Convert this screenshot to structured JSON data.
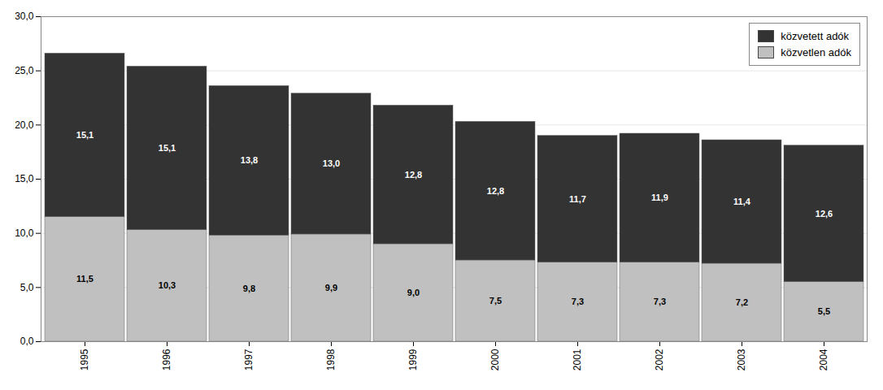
{
  "chart_data": {
    "type": "bar",
    "stacked": true,
    "categories": [
      "1995",
      "1996",
      "1997",
      "1998",
      "1999",
      "2000",
      "2001",
      "2002",
      "2003",
      "2004"
    ],
    "series": [
      {
        "name": "közvetlen adók",
        "color": "#c0c0c0",
        "values": [
          11.5,
          10.3,
          9.8,
          9.9,
          9.0,
          7.5,
          7.3,
          7.3,
          7.2,
          5.5
        ],
        "value_labels": [
          "11,5",
          "10,3",
          "9,8",
          "9,9",
          "9,0",
          "7,5",
          "7,3",
          "7,3",
          "7,2",
          "5,5"
        ]
      },
      {
        "name": "közvetett adók",
        "color": "#333333",
        "values": [
          15.1,
          15.1,
          13.8,
          13.0,
          12.8,
          12.8,
          11.7,
          11.9,
          11.4,
          12.6
        ],
        "value_labels": [
          "15,1",
          "15,1",
          "13,8",
          "13,0",
          "12,8",
          "12,8",
          "11,7",
          "11,9",
          "11,4",
          "12,6"
        ]
      }
    ],
    "ylim": [
      0,
      30
    ],
    "yticks": [
      {
        "value": 0,
        "label": "0,0"
      },
      {
        "value": 5,
        "label": "5,0"
      },
      {
        "value": 10,
        "label": "10,0"
      },
      {
        "value": 15,
        "label": "15,0"
      },
      {
        "value": 20,
        "label": "20,0"
      },
      {
        "value": 25,
        "label": "25,0"
      },
      {
        "value": 30,
        "label": "30,0"
      }
    ],
    "grid": true,
    "data_labels": true,
    "legend": "upper right"
  }
}
